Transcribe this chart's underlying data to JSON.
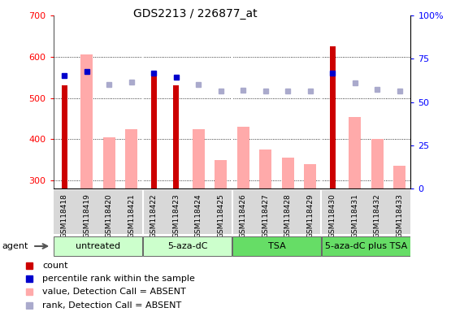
{
  "title": "GDS2213 / 226877_at",
  "samples": [
    "GSM118418",
    "GSM118419",
    "GSM118420",
    "GSM118421",
    "GSM118422",
    "GSM118423",
    "GSM118424",
    "GSM118425",
    "GSM118426",
    "GSM118427",
    "GSM118428",
    "GSM118429",
    "GSM118430",
    "GSM118431",
    "GSM118432",
    "GSM118433"
  ],
  "count_values": [
    530,
    null,
    null,
    null,
    560,
    530,
    null,
    null,
    null,
    null,
    null,
    null,
    625,
    null,
    null,
    null
  ],
  "pink_values": [
    null,
    605,
    405,
    425,
    null,
    null,
    425,
    350,
    430,
    375,
    355,
    340,
    null,
    455,
    400,
    335
  ],
  "blue_sq_left": [
    555,
    565,
    533,
    538,
    560,
    550,
    533,
    517,
    520,
    518,
    517,
    517,
    560,
    537,
    522,
    517
  ],
  "dark_blue_indices": [
    0,
    1,
    4,
    5,
    12
  ],
  "groups": [
    {
      "label": "untreated",
      "start": 0,
      "end": 3,
      "color": "#ccffcc"
    },
    {
      "label": "5-aza-dC",
      "start": 4,
      "end": 7,
      "color": "#ccffcc"
    },
    {
      "label": "TSA",
      "start": 8,
      "end": 11,
      "color": "#ccffcc"
    },
    {
      "label": "5-aza-dC plus TSA",
      "start": 12,
      "end": 15,
      "color": "#ccffcc"
    }
  ],
  "ylim_left": [
    280,
    700
  ],
  "ylim_right": [
    0,
    100
  ],
  "yticks_left": [
    300,
    400,
    500,
    600,
    700
  ],
  "yticks_right": [
    0,
    25,
    50,
    75,
    100
  ],
  "count_color": "#cc0000",
  "pink_color": "#ffaaaa",
  "dark_blue_color": "#0000cc",
  "light_blue_color": "#aaaacc",
  "agent_label": "agent",
  "group_dividers": [
    3.5,
    7.5,
    11.5
  ],
  "legend_items": [
    {
      "color": "#cc0000",
      "label": "count"
    },
    {
      "color": "#0000cc",
      "label": "percentile rank within the sample"
    },
    {
      "color": "#ffaaaa",
      "label": "value, Detection Call = ABSENT"
    },
    {
      "color": "#aaaacc",
      "label": "rank, Detection Call = ABSENT"
    }
  ]
}
